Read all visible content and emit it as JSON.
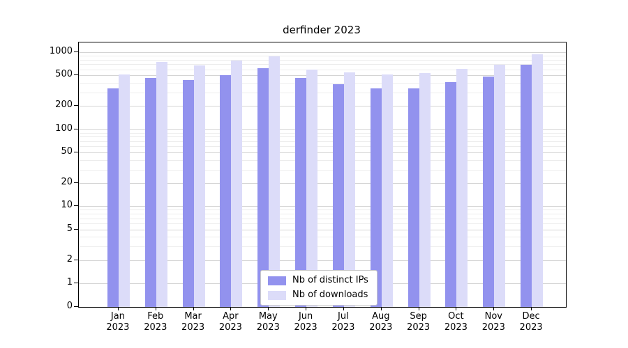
{
  "chart_data": {
    "type": "bar",
    "title": "derfinder 2023",
    "yscale": "log",
    "grid": true,
    "legend_position": "bottom-center",
    "year": "2023",
    "categories": [
      "Jan",
      "Feb",
      "Mar",
      "Apr",
      "May",
      "Jun",
      "Jul",
      "Aug",
      "Sep",
      "Oct",
      "Nov",
      "Dec"
    ],
    "yticks": [
      1000,
      500,
      200,
      100,
      50,
      20,
      10,
      5,
      2,
      1,
      0
    ],
    "ylim": [
      0,
      1100
    ],
    "series": [
      {
        "name": "Nb of distinct IPs",
        "color": "#9292ee",
        "values": [
          340,
          465,
          435,
          505,
          620,
          465,
          385,
          340,
          340,
          410,
          480,
          685
        ]
      },
      {
        "name": "Nb of downloads",
        "color": "#dcdcf9",
        "values": [
          515,
          750,
          670,
          780,
          880,
          595,
          545,
          515,
          535,
          605,
          685,
          940
        ]
      }
    ]
  }
}
